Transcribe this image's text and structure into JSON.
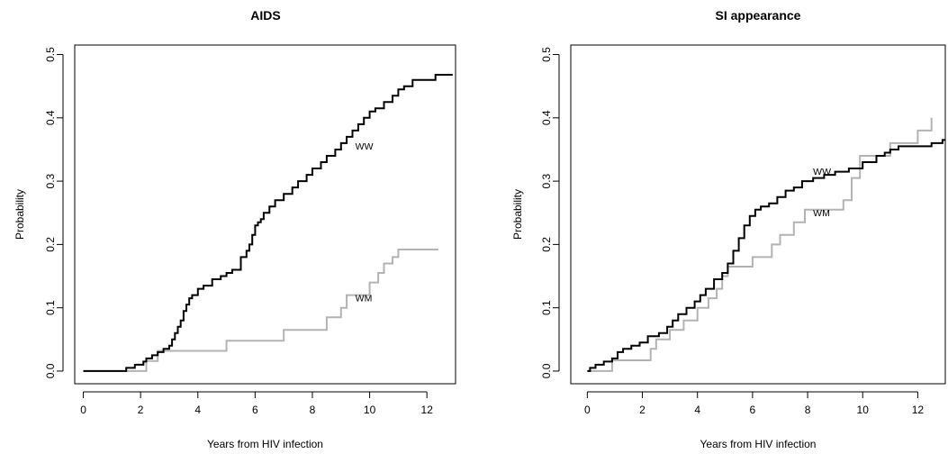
{
  "chart_data": [
    {
      "type": "line",
      "title": "AIDS",
      "xlabel": "Years from HIV infection",
      "ylabel": "Probability",
      "xlim": [
        -0.3,
        13
      ],
      "ylim": [
        -0.02,
        0.515
      ],
      "xticks": [
        0,
        2,
        4,
        6,
        8,
        10,
        12
      ],
      "yticks": [
        0.0,
        0.1,
        0.2,
        0.3,
        0.4,
        0.5
      ],
      "xtick_labels": [
        "0",
        "2",
        "4",
        "6",
        "8",
        "10",
        "12"
      ],
      "ytick_labels": [
        "0.0",
        "0.1",
        "0.2",
        "0.3",
        "0.4",
        "0.5"
      ],
      "grid": false,
      "step": true,
      "series": [
        {
          "name": "WW",
          "color": "#000000",
          "label_at": [
            9.5,
            0.35
          ],
          "x": [
            0,
            1.5,
            1.8,
            2.1,
            2.2,
            2.4,
            2.6,
            2.8,
            3.0,
            3.1,
            3.2,
            3.3,
            3.4,
            3.5,
            3.6,
            3.7,
            3.8,
            4.0,
            4.2,
            4.5,
            4.8,
            5.0,
            5.2,
            5.5,
            5.7,
            5.8,
            5.9,
            6.0,
            6.1,
            6.2,
            6.3,
            6.5,
            6.7,
            7.0,
            7.3,
            7.5,
            7.8,
            8.0,
            8.3,
            8.5,
            8.8,
            9.0,
            9.2,
            9.4,
            9.6,
            9.8,
            10.0,
            10.2,
            10.5,
            10.8,
            11.0,
            11.2,
            11.5,
            12.0,
            12.3,
            12.9
          ],
          "y": [
            0,
            0.005,
            0.01,
            0.015,
            0.02,
            0.025,
            0.03,
            0.035,
            0.04,
            0.05,
            0.06,
            0.07,
            0.08,
            0.095,
            0.105,
            0.115,
            0.12,
            0.13,
            0.135,
            0.145,
            0.15,
            0.155,
            0.16,
            0.18,
            0.19,
            0.2,
            0.215,
            0.23,
            0.235,
            0.24,
            0.25,
            0.26,
            0.27,
            0.28,
            0.29,
            0.3,
            0.31,
            0.32,
            0.33,
            0.34,
            0.35,
            0.36,
            0.37,
            0.38,
            0.39,
            0.4,
            0.41,
            0.415,
            0.425,
            0.435,
            0.445,
            0.45,
            0.46,
            0.46,
            0.468,
            0.468
          ]
        },
        {
          "name": "WM",
          "color": "#b3b3b3",
          "label_at": [
            9.5,
            0.11
          ],
          "x": [
            0,
            2.2,
            2.6,
            5.0,
            7.0,
            8.5,
            9.0,
            9.2,
            9.5,
            10.0,
            10.3,
            10.5,
            10.8,
            11.0,
            12.4
          ],
          "y": [
            0,
            0.016,
            0.032,
            0.048,
            0.065,
            0.085,
            0.1,
            0.12,
            0.12,
            0.14,
            0.155,
            0.17,
            0.18,
            0.192,
            0.192
          ]
        }
      ]
    },
    {
      "type": "line",
      "title": "SI appearance",
      "xlabel": "Years from HIV infection",
      "ylabel": "Probability",
      "xlim": [
        -0.6,
        13
      ],
      "ylim": [
        -0.02,
        0.515
      ],
      "xticks": [
        0,
        2,
        4,
        6,
        8,
        10,
        12
      ],
      "yticks": [
        0.0,
        0.1,
        0.2,
        0.3,
        0.4,
        0.5
      ],
      "xtick_labels": [
        "0",
        "2",
        "4",
        "6",
        "8",
        "10",
        "12"
      ],
      "ytick_labels": [
        "0.0",
        "0.1",
        "0.2",
        "0.3",
        "0.4",
        "0.5"
      ],
      "grid": false,
      "step": true,
      "series": [
        {
          "name": "WW",
          "color": "#000000",
          "label_at": [
            8.2,
            0.31
          ],
          "x": [
            0,
            0.1,
            0.3,
            0.6,
            0.9,
            1.1,
            1.3,
            1.6,
            1.9,
            2.2,
            2.6,
            2.9,
            3.1,
            3.3,
            3.6,
            3.9,
            4.1,
            4.3,
            4.6,
            4.9,
            5.1,
            5.3,
            5.5,
            5.7,
            5.9,
            6.1,
            6.3,
            6.6,
            6.9,
            7.2,
            7.5,
            7.8,
            8.2,
            8.6,
            9.0,
            9.5,
            10.0,
            10.5,
            10.8,
            11.0,
            11.3,
            12.0,
            12.5,
            12.9,
            13.0
          ],
          "y": [
            0,
            0.005,
            0.01,
            0.015,
            0.02,
            0.03,
            0.035,
            0.04,
            0.045,
            0.055,
            0.06,
            0.07,
            0.08,
            0.09,
            0.1,
            0.11,
            0.12,
            0.13,
            0.145,
            0.155,
            0.17,
            0.19,
            0.21,
            0.23,
            0.245,
            0.255,
            0.26,
            0.265,
            0.275,
            0.285,
            0.29,
            0.3,
            0.305,
            0.31,
            0.315,
            0.32,
            0.33,
            0.34,
            0.345,
            0.35,
            0.355,
            0.355,
            0.36,
            0.365,
            0.365
          ]
        },
        {
          "name": "WM",
          "color": "#b3b3b3",
          "label_at": [
            8.2,
            0.245
          ],
          "x": [
            0,
            0.9,
            2.1,
            2.3,
            2.5,
            3.0,
            3.5,
            4.0,
            4.4,
            4.7,
            4.9,
            5.1,
            5.3,
            6.0,
            6.7,
            7.0,
            7.5,
            7.9,
            9.0,
            9.3,
            9.6,
            9.9,
            11.0,
            12.0,
            12.5
          ],
          "y": [
            0,
            0.017,
            0.017,
            0.035,
            0.05,
            0.065,
            0.08,
            0.1,
            0.115,
            0.13,
            0.15,
            0.165,
            0.165,
            0.18,
            0.2,
            0.215,
            0.235,
            0.255,
            0.255,
            0.27,
            0.305,
            0.34,
            0.36,
            0.38,
            0.4
          ]
        }
      ]
    }
  ]
}
